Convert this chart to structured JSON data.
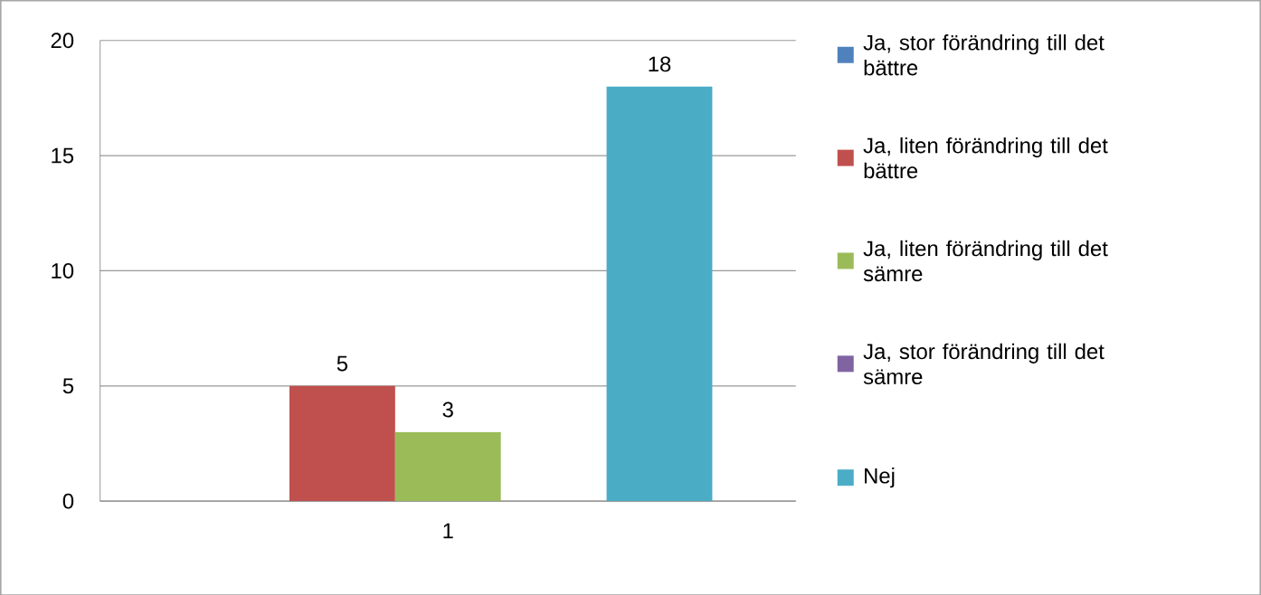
{
  "chart_data": {
    "type": "bar",
    "categories": [
      "1"
    ],
    "series": [
      {
        "name": "Ja, stor förändring till det bättre",
        "color": "#4f81bd",
        "values": [
          null
        ]
      },
      {
        "name": "Ja, liten förändring till det bättre",
        "color": "#c0504d",
        "values": [
          5
        ]
      },
      {
        "name": "Ja, liten förändring till det sämre",
        "color": "#9bbb59",
        "values": [
          3
        ]
      },
      {
        "name": "Ja, stor förändring till det sämre",
        "color": "#8064a2",
        "values": [
          null
        ]
      },
      {
        "name": "Nej",
        "color": "#4bacc6",
        "values": [
          18
        ]
      }
    ],
    "ylim": [
      0,
      20
    ],
    "yticks": [
      0,
      5,
      10,
      15,
      20
    ],
    "grid": "y",
    "legend": "right",
    "data_labels": true
  }
}
